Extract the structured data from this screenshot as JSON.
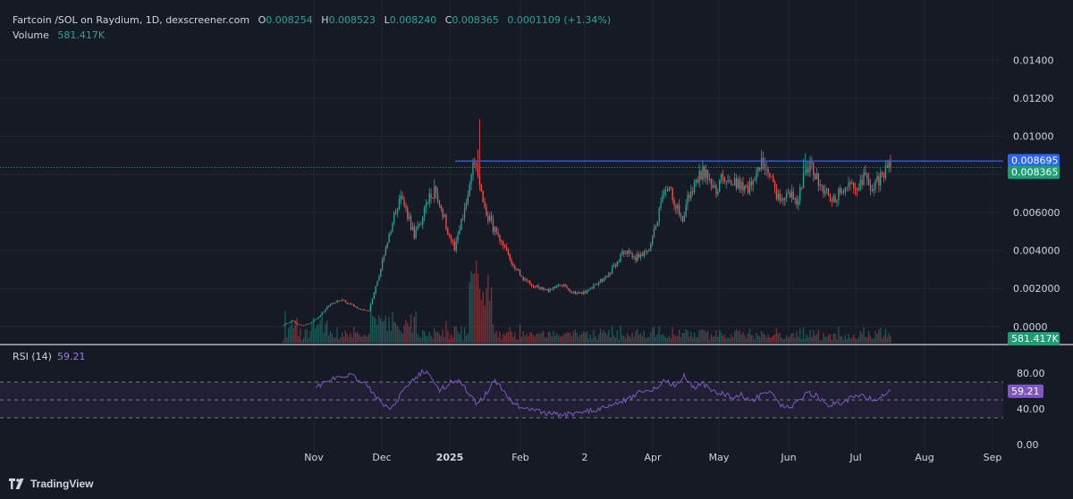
{
  "header": {
    "symbol": "Fartcoin /SOL on Raydium, 1D, dexscreener.com",
    "open_label": "O",
    "open": "0.008254",
    "high_label": "H",
    "high": "0.008523",
    "low_label": "L",
    "low": "0.008240",
    "close_label": "C",
    "close": "0.008365",
    "change": "0.0001109 (+1.34%)",
    "volume_label": "Volume",
    "volume": "581.417K"
  },
  "rsi_header": {
    "label": "RSI (14)",
    "value": "59.21"
  },
  "branding": {
    "name": "TradingView",
    "logo_icon": "tradingview-logo-icon"
  },
  "colors": {
    "background": "#161a25",
    "up": "#26a69a",
    "down": "#ef5350",
    "grid": "#232735",
    "rsi_line": "#7e57c2",
    "rsi_band": "#2a2440",
    "resistance_line": "#2962ff",
    "last_price_label": "#1a9e72",
    "resistance_label": "#2962ff"
  },
  "chart_data": [
    {
      "type": "candlestick",
      "title": "Fartcoin /SOL on Raydium, 1D, dexscreener.com",
      "y_ticks": [
        "0.0000",
        "0.002000",
        "0.004000",
        "0.006000",
        "0.008000",
        "0.01000",
        "0.01200",
        "0.01400"
      ],
      "ylim": [
        -0.00085,
        0.01575
      ],
      "x_ticks": [
        "Nov",
        "Dec",
        "2025",
        "Feb",
        "2",
        "Apr",
        "May",
        "Jun",
        "Jul",
        "Aug",
        "Sep"
      ],
      "grid": true,
      "last_price": 0.008365,
      "last_price_label": "0.008365",
      "resistance_level": 0.008695,
      "resistance_label": "0.008695",
      "volume_last_label": "581.417K",
      "price_path": [
        [
          0,
          0.0001
        ],
        [
          5,
          0.0003
        ],
        [
          10,
          5e-05
        ],
        [
          16,
          0.0002
        ],
        [
          22,
          0.0006
        ],
        [
          28,
          0.0012
        ],
        [
          34,
          0.0014
        ],
        [
          40,
          0.0012
        ],
        [
          46,
          0.0009
        ],
        [
          51,
          0.0008
        ],
        [
          54,
          0.0018
        ],
        [
          58,
          0.003
        ],
        [
          62,
          0.0045
        ],
        [
          66,
          0.0058
        ],
        [
          70,
          0.0069
        ],
        [
          74,
          0.0058
        ],
        [
          78,
          0.0048
        ],
        [
          82,
          0.0055
        ],
        [
          86,
          0.0066
        ],
        [
          90,
          0.0072
        ],
        [
          94,
          0.0063
        ],
        [
          98,
          0.005
        ],
        [
          102,
          0.0042
        ],
        [
          106,
          0.0055
        ],
        [
          109,
          0.0065
        ],
        [
          112,
          0.008
        ],
        [
          114,
          0.0086
        ],
        [
          117,
          0.0075
        ],
        [
          120,
          0.0062
        ],
        [
          125,
          0.0052
        ],
        [
          130,
          0.0043
        ],
        [
          136,
          0.0034
        ],
        [
          142,
          0.0026
        ],
        [
          150,
          0.0021
        ],
        [
          158,
          0.0019
        ],
        [
          166,
          0.0022
        ],
        [
          172,
          0.0018
        ],
        [
          180,
          0.0018
        ],
        [
          186,
          0.0022
        ],
        [
          192,
          0.0026
        ],
        [
          198,
          0.0032
        ],
        [
          203,
          0.004
        ],
        [
          210,
          0.0036
        ],
        [
          218,
          0.004
        ],
        [
          222,
          0.0053
        ],
        [
          226,
          0.0068
        ],
        [
          230,
          0.0072
        ],
        [
          234,
          0.0064
        ],
        [
          238,
          0.0057
        ],
        [
          242,
          0.007
        ],
        [
          246,
          0.0075
        ],
        [
          250,
          0.0082
        ],
        [
          254,
          0.0076
        ],
        [
          258,
          0.007
        ],
        [
          262,
          0.0079
        ],
        [
          266,
          0.0074
        ],
        [
          270,
          0.0076
        ],
        [
          274,
          0.0072
        ],
        [
          278,
          0.0074
        ],
        [
          282,
          0.0082
        ],
        [
          286,
          0.0086
        ],
        [
          290,
          0.0079
        ],
        [
          294,
          0.0068
        ],
        [
          298,
          0.0066
        ],
        [
          302,
          0.007
        ],
        [
          306,
          0.0064
        ],
        [
          310,
          0.008
        ],
        [
          314,
          0.0085
        ],
        [
          318,
          0.0078
        ],
        [
          322,
          0.0073
        ],
        [
          326,
          0.0066
        ],
        [
          330,
          0.0069
        ],
        [
          334,
          0.0072
        ],
        [
          338,
          0.0076
        ],
        [
          342,
          0.0074
        ],
        [
          346,
          0.0078
        ],
        [
          350,
          0.0072
        ],
        [
          354,
          0.0076
        ],
        [
          358,
          0.008
        ],
        [
          362,
          0.0084
        ]
      ],
      "spikes": [
        {
          "index": 117,
          "high": 0.0109
        },
        {
          "index": 116,
          "high": 0.0093
        },
        {
          "index": 311,
          "high": 0.0091
        },
        {
          "index": 287,
          "high": 0.0089
        },
        {
          "index": 310,
          "high": 0.0088
        }
      ]
    },
    {
      "type": "line",
      "title": "RSI (14)",
      "current_label": "59.21",
      "y_ticks": [
        "0.00",
        "40.00",
        "80.00"
      ],
      "ylim": [
        -7,
        110
      ],
      "band_upper": 70,
      "band_lower": 30,
      "mid_level": 50,
      "rsi_path": [
        [
          0,
          64
        ],
        [
          6,
          69
        ],
        [
          12,
          74
        ],
        [
          18,
          76
        ],
        [
          22,
          80
        ],
        [
          26,
          72
        ],
        [
          30,
          70
        ],
        [
          36,
          58
        ],
        [
          42,
          45
        ],
        [
          46,
          39
        ],
        [
          50,
          45
        ],
        [
          56,
          62
        ],
        [
          62,
          74
        ],
        [
          68,
          82
        ],
        [
          74,
          74
        ],
        [
          78,
          60
        ],
        [
          84,
          69
        ],
        [
          90,
          72
        ],
        [
          96,
          58
        ],
        [
          102,
          44
        ],
        [
          108,
          59
        ],
        [
          112,
          72
        ],
        [
          116,
          66
        ],
        [
          122,
          50
        ],
        [
          128,
          43
        ],
        [
          136,
          38
        ],
        [
          146,
          35
        ],
        [
          156,
          33
        ],
        [
          166,
          36
        ],
        [
          176,
          39
        ],
        [
          186,
          45
        ],
        [
          196,
          50
        ],
        [
          206,
          60
        ],
        [
          214,
          63
        ],
        [
          220,
          73
        ],
        [
          226,
          65
        ],
        [
          232,
          77
        ],
        [
          238,
          64
        ],
        [
          244,
          68
        ],
        [
          250,
          60
        ],
        [
          256,
          57
        ],
        [
          262,
          53
        ],
        [
          268,
          56
        ],
        [
          274,
          48
        ],
        [
          280,
          55
        ],
        [
          286,
          60
        ],
        [
          292,
          45
        ],
        [
          298,
          41
        ],
        [
          304,
          48
        ],
        [
          310,
          58
        ],
        [
          316,
          54
        ],
        [
          322,
          44
        ],
        [
          328,
          46
        ],
        [
          334,
          49
        ],
        [
          340,
          56
        ],
        [
          346,
          54
        ],
        [
          352,
          50
        ],
        [
          358,
          57
        ],
        [
          362,
          60
        ]
      ]
    }
  ]
}
